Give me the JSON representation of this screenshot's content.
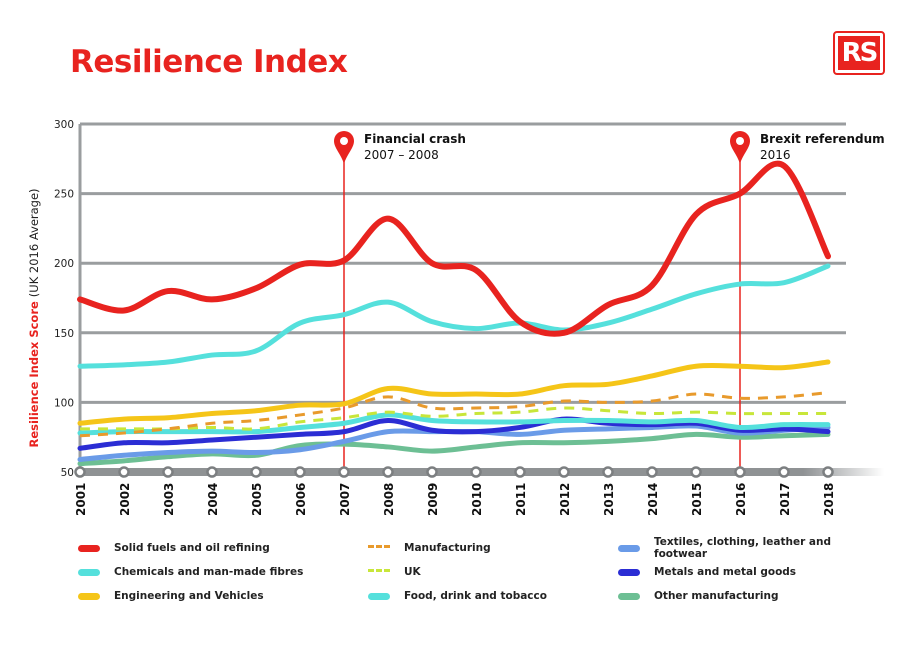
{
  "title": "Resilience Index",
  "logo_text": "RS",
  "chart_data": {
    "type": "line",
    "title": "Resilience Index",
    "ylabel_bold": "Resilience Index Score",
    "ylabel_rest": "(UK 2016 Average)",
    "xlabel": "",
    "ylim": [
      50,
      300
    ],
    "yticks": [
      50,
      100,
      150,
      200,
      250,
      300
    ],
    "grid": true,
    "legend_placement": "bottom",
    "categories": [
      "2001",
      "2002",
      "2003",
      "2004",
      "2005",
      "2006",
      "2007",
      "2008",
      "2009",
      "2010",
      "2011",
      "2012",
      "2013",
      "2014",
      "2015",
      "2016",
      "2017",
      "2018"
    ],
    "annotations": [
      {
        "x": "2007",
        "title": "Financial crash",
        "subtitle": "2007 – 2008"
      },
      {
        "x": "2016",
        "title": "Brexit referendum",
        "subtitle": "2016"
      }
    ],
    "series": [
      {
        "name": "Other manufacturing",
        "color": "#6dbf94",
        "dashed": false,
        "values": [
          56,
          58,
          61,
          63,
          62,
          69,
          70,
          68,
          65,
          68,
          71,
          71,
          72,
          74,
          77,
          75,
          76,
          77
        ]
      },
      {
        "name": "Textiles, clothing, leather and footwear",
        "color": "#6a9be8",
        "dashed": false,
        "values": [
          59,
          62,
          64,
          65,
          64,
          66,
          72,
          79,
          79,
          79,
          77,
          80,
          81,
          82,
          83,
          78,
          80,
          82
        ]
      },
      {
        "name": "Metals and metal goods",
        "color": "#2b2dd4",
        "dashed": false,
        "values": [
          67,
          71,
          71,
          73,
          75,
          77,
          79,
          87,
          80,
          79,
          82,
          88,
          85,
          84,
          85,
          80,
          81,
          79
        ]
      },
      {
        "name": "Food, drink and tobacco",
        "color": "#55e0dc",
        "dashed": false,
        "values": [
          78,
          79,
          79,
          79,
          79,
          82,
          85,
          91,
          87,
          86,
          86,
          87,
          87,
          86,
          87,
          82,
          84,
          84
        ]
      },
      {
        "name": "UK",
        "color": "#c8e63a",
        "dashed": true,
        "values": [
          81,
          81,
          81,
          82,
          81,
          86,
          89,
          93,
          90,
          92,
          93,
          96,
          94,
          92,
          93,
          92,
          92,
          92
        ]
      },
      {
        "name": "Manufacturing",
        "color": "#e89a2c",
        "dashed": true,
        "values": [
          76,
          78,
          81,
          85,
          87,
          91,
          96,
          104,
          96,
          96,
          97,
          101,
          100,
          101,
          106,
          103,
          104,
          107
        ]
      },
      {
        "name": "Engineering and Vehicles",
        "color": "#f5c518",
        "dashed": false,
        "values": [
          85,
          88,
          89,
          92,
          94,
          98,
          99,
          110,
          106,
          106,
          106,
          112,
          113,
          119,
          126,
          126,
          125,
          129
        ]
      },
      {
        "name": "Chemicals and man-made fibres",
        "color": "#55e0dc",
        "dashed": false,
        "values": [
          126,
          127,
          129,
          134,
          137,
          157,
          163,
          172,
          158,
          153,
          157,
          152,
          157,
          167,
          178,
          185,
          186,
          198
        ]
      },
      {
        "name": "Solid fuels and oil refining",
        "color": "#e8231f",
        "dashed": false,
        "values": [
          174,
          166,
          180,
          174,
          182,
          199,
          202,
          232,
          200,
          195,
          158,
          150,
          170,
          184,
          235,
          250,
          270,
          205
        ]
      }
    ],
    "legend_order": [
      "Solid fuels and oil refining",
      "Manufacturing",
      "Textiles, clothing, leather and footwear",
      "Chemicals and man-made fibres",
      "UK",
      "Metals and metal goods",
      "Engineering and Vehicles",
      "Food, drink and tobacco",
      "Other manufacturing"
    ]
  }
}
